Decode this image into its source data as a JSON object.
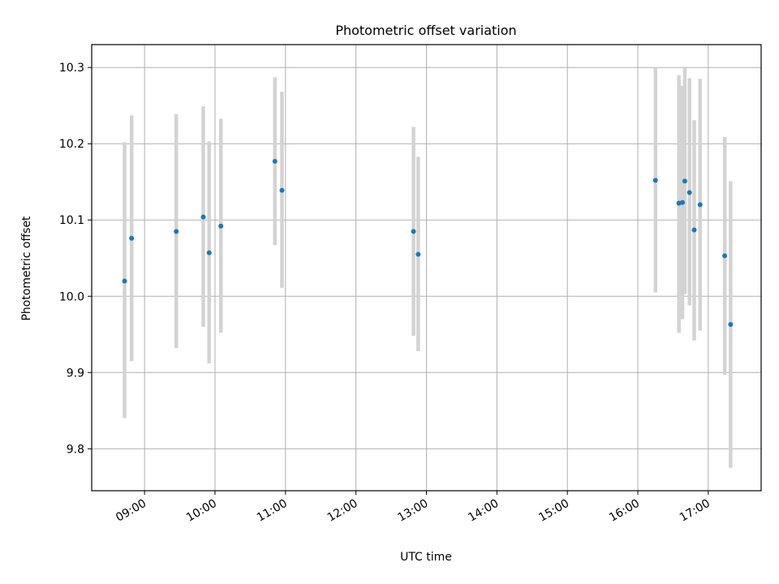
{
  "chart_data": {
    "type": "scatter",
    "title": "Photometric offset variation",
    "xlabel": "UTC time",
    "ylabel": "Photometric offset",
    "x_axis_type": "time",
    "xlim": [
      "08:15",
      "17:45"
    ],
    "ylim": [
      9.745,
      10.33
    ],
    "grid": true,
    "x_ticks": [
      "09:00",
      "10:00",
      "11:00",
      "12:00",
      "13:00",
      "14:00",
      "15:00",
      "16:00",
      "17:00"
    ],
    "y_ticks": [
      "9.8",
      "9.9",
      "10.0",
      "10.1",
      "10.2",
      "10.3"
    ],
    "marker_color": "#1f77b4",
    "errorbar_color": "#d3d3d3",
    "points": [
      {
        "time": "08:43",
        "value": 10.02,
        "low": 9.84,
        "high": 10.202
      },
      {
        "time": "08:49",
        "value": 10.076,
        "low": 9.915,
        "high": 10.237
      },
      {
        "time": "09:27",
        "value": 10.085,
        "low": 9.932,
        "high": 10.239
      },
      {
        "time": "09:50",
        "value": 10.104,
        "low": 9.96,
        "high": 10.249
      },
      {
        "time": "09:55",
        "value": 10.057,
        "low": 9.912,
        "high": 10.203
      },
      {
        "time": "10:05",
        "value": 10.092,
        "low": 9.952,
        "high": 10.233
      },
      {
        "time": "10:51",
        "value": 10.177,
        "low": 10.067,
        "high": 10.287
      },
      {
        "time": "10:57",
        "value": 10.139,
        "low": 10.011,
        "high": 10.268
      },
      {
        "time": "12:49",
        "value": 10.085,
        "low": 9.948,
        "high": 10.222
      },
      {
        "time": "12:53",
        "value": 10.055,
        "low": 9.928,
        "high": 10.183
      },
      {
        "time": "16:15",
        "value": 10.152,
        "low": 10.005,
        "high": 10.299
      },
      {
        "time": "16:35",
        "value": 10.122,
        "low": 9.952,
        "high": 10.29
      },
      {
        "time": "16:38",
        "value": 10.123,
        "low": 9.97,
        "high": 10.276
      },
      {
        "time": "16:40",
        "value": 10.151,
        "low": 10.003,
        "high": 10.299
      },
      {
        "time": "16:44",
        "value": 10.136,
        "low": 9.988,
        "high": 10.286
      },
      {
        "time": "16:48",
        "value": 10.087,
        "low": 9.942,
        "high": 10.231
      },
      {
        "time": "16:53",
        "value": 10.12,
        "low": 9.955,
        "high": 10.285
      },
      {
        "time": "17:14",
        "value": 10.053,
        "low": 9.897,
        "high": 10.209
      },
      {
        "time": "17:19",
        "value": 9.963,
        "low": 9.775,
        "high": 10.151
      }
    ]
  }
}
